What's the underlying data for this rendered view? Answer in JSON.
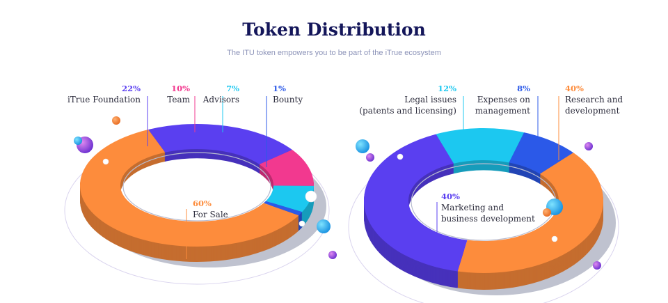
{
  "header": {
    "title": "Token Distribution",
    "subtitle": "The ITU token empowers you to be part of the iTrue ecosystem"
  },
  "chart_data": [
    {
      "type": "pie",
      "variant": "donut-3d",
      "slices": [
        {
          "label": "iTrue Foundation",
          "value": 22,
          "pct_label": "22%",
          "color": "#5a3ff0"
        },
        {
          "label": "Team",
          "value": 10,
          "pct_label": "10%",
          "color": "#f2398f"
        },
        {
          "label": "Advisors",
          "value": 7,
          "pct_label": "7%",
          "color": "#1cc8f0"
        },
        {
          "label": "Bounty",
          "value": 1,
          "pct_label": "1%",
          "color": "#2b59e8"
        },
        {
          "label": "For Sale",
          "value": 60,
          "pct_label": "60%",
          "color": "#fd8c3c"
        }
      ]
    },
    {
      "type": "pie",
      "variant": "donut-3d",
      "slices": [
        {
          "label": "Legal issues\n(patents and licensing)",
          "value": 12,
          "pct_label": "12%",
          "color": "#1cc8f0"
        },
        {
          "label": "Expenses on\nmanagement",
          "value": 8,
          "pct_label": "8%",
          "color": "#2b59e8"
        },
        {
          "label": "Research and\ndevelopment",
          "value": 40,
          "pct_label": "40%",
          "color": "#fd8c3c"
        },
        {
          "label": "Marketing and\nbusiness development",
          "value": 40,
          "pct_label": "40%",
          "color": "#5a3ff0"
        }
      ]
    }
  ]
}
